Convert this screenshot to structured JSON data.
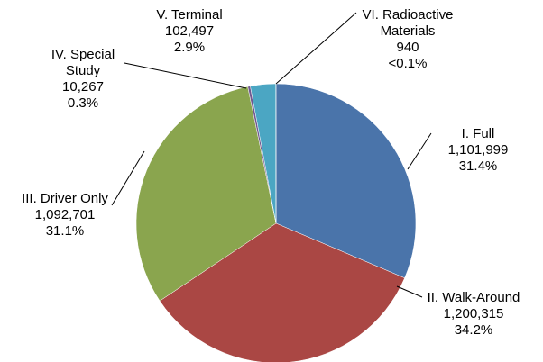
{
  "chart_data": {
    "type": "pie",
    "categories": [
      "I. Full",
      "II. Walk-Around",
      "III. Driver Only",
      "IV. Special Study",
      "V. Terminal",
      "VI. Radioactive Materials"
    ],
    "values": [
      1101999,
      1200315,
      1092701,
      10267,
      102497,
      940
    ],
    "value_labels": [
      "1,101,999",
      "1,200,315",
      "1,092,701",
      "10,267",
      "102,497",
      "940"
    ],
    "shares": [
      "31.4%",
      "34.2%",
      "31.1%",
      "0.3%",
      "2.9%",
      "<0.1%"
    ],
    "colors": [
      "#4a74aa",
      "#aa4744",
      "#8aa54e",
      "#71588f",
      "#4ba6c3",
      "#f59a4a"
    ]
  }
}
